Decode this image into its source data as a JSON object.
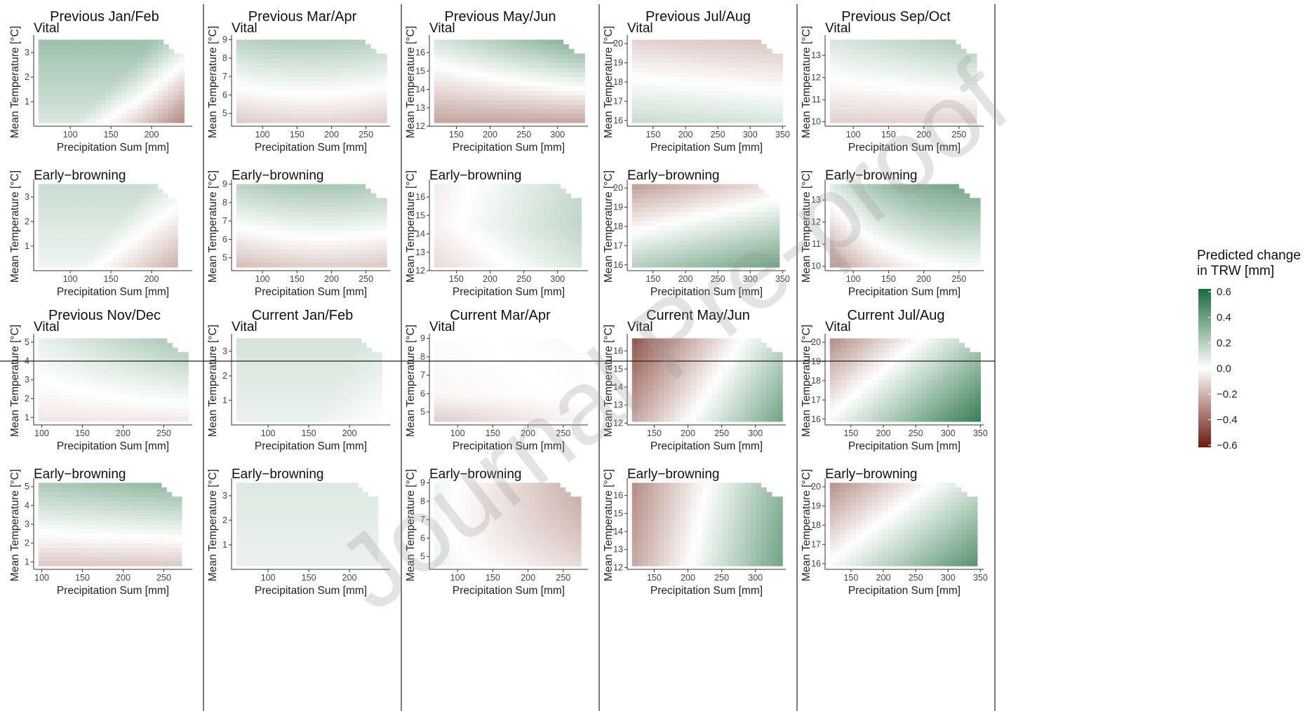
{
  "figure": {
    "x_label": "Precipitation Sum [mm]",
    "y_label": "Mean Temperature [°C]",
    "groups": [
      "Vital",
      "Early−browning"
    ],
    "legend": {
      "title_line1": "Predicted change",
      "title_line2": "in TRW [mm]",
      "ticks": [
        "0.6",
        "0.4",
        "0.2",
        "0.0",
        "−0.2",
        "−0.4",
        "−0.6"
      ],
      "colors": {
        "high": "#1a6b3a",
        "mid": "#ffffff",
        "low": "#6b1a0a"
      }
    },
    "watermark": "Journal Pre-proof"
  },
  "chart_data": {
    "type": "heatmap",
    "color_scale": {
      "min": -0.6,
      "max": 0.6,
      "low": "#6b1a0a",
      "mid": "#ffffff",
      "high": "#1a6b3a"
    },
    "panels": [
      {
        "title": "Previous Jan/Feb",
        "xlim": [
          55,
          250
        ],
        "xticks": [
          100,
          150,
          200
        ],
        "vital": {
          "ylim": [
            0,
            3.6
          ],
          "yticks": [
            1,
            2,
            3
          ],
          "xmax": 240,
          "surface": "prev_janfeb_vital"
        },
        "browning": {
          "ylim": [
            0,
            3.6
          ],
          "yticks": [
            1,
            2,
            3
          ],
          "xmax": 232,
          "surface": "prev_janfeb_brown"
        }
      },
      {
        "title": "Previous Mar/Apr",
        "xlim": [
          55,
          285
        ],
        "xticks": [
          100,
          150,
          200,
          250
        ],
        "vital": {
          "ylim": [
            4.3,
            9.1
          ],
          "yticks": [
            5,
            6,
            7,
            8,
            9
          ],
          "xmax": 280,
          "surface": "prev_marapr_vital"
        },
        "browning": {
          "ylim": [
            4.3,
            9.1
          ],
          "yticks": [
            5,
            6,
            7,
            8,
            9
          ],
          "xmax": 280,
          "surface": "prev_marapr_brown"
        }
      },
      {
        "title": "Previous May/Jun",
        "xlim": [
          110,
          345
        ],
        "xticks": [
          150,
          200,
          250,
          300
        ],
        "vital": {
          "ylim": [
            12,
            16.8
          ],
          "yticks": [
            12,
            13,
            14,
            15,
            16
          ],
          "xmax": 340,
          "surface": "prev_mayjun_vital"
        },
        "browning": {
          "ylim": [
            12,
            16.8
          ],
          "yticks": [
            12,
            13,
            14,
            15,
            16
          ],
          "xmax": 335,
          "surface": "prev_mayjun_brown"
        }
      },
      {
        "title": "Previous Jul/Aug",
        "xlim": [
          110,
          355
        ],
        "xticks": [
          150,
          200,
          250,
          300,
          350
        ],
        "vital": {
          "ylim": [
            15.7,
            20.3
          ],
          "yticks": [
            16,
            17,
            18,
            19,
            20
          ],
          "xmax": 350,
          "surface": "prev_julaug_vital"
        },
        "browning": {
          "ylim": [
            15.7,
            20.3
          ],
          "yticks": [
            16,
            17,
            18,
            19,
            20
          ],
          "xmax": 345,
          "surface": "prev_julaug_brown"
        }
      },
      {
        "title": "Previous Sep/Oct",
        "xlim": [
          60,
          285
        ],
        "xticks": [
          100,
          150,
          200,
          250
        ],
        "vital": {
          "ylim": [
            9.8,
            13.8
          ],
          "yticks": [
            10,
            11,
            12,
            13
          ],
          "xmax": 275,
          "surface": "prev_sepoct_vital"
        },
        "browning": {
          "ylim": [
            9.8,
            13.8
          ],
          "yticks": [
            10,
            11,
            12,
            13
          ],
          "xmax": 280,
          "surface": "prev_sepoct_brown"
        }
      },
      {
        "title": "Previous Nov/Dec",
        "xlim": [
          90,
          285
        ],
        "xticks": [
          100,
          150,
          200,
          250
        ],
        "vital": {
          "ylim": [
            0.6,
            5.3
          ],
          "yticks": [
            1,
            2,
            3,
            4,
            5
          ],
          "xmax": 280,
          "surface": "prev_novdec_vital"
        },
        "browning": {
          "ylim": [
            0.6,
            5.3
          ],
          "yticks": [
            1,
            2,
            3,
            4,
            5
          ],
          "xmax": 272,
          "surface": "prev_novdec_brown"
        }
      },
      {
        "title": "Current Jan/Feb",
        "xlim": [
          55,
          250
        ],
        "xticks": [
          100,
          150,
          200
        ],
        "vital": {
          "ylim": [
            0,
            3.6
          ],
          "yticks": [
            1,
            2,
            3
          ],
          "xmax": 240,
          "surface": "cur_janfeb_vital"
        },
        "browning": {
          "ylim": [
            0,
            3.6
          ],
          "yticks": [
            1,
            2,
            3
          ],
          "xmax": 235,
          "surface": "cur_janfeb_brown"
        }
      },
      {
        "title": "Current Mar/Apr",
        "xlim": [
          60,
          285
        ],
        "xticks": [
          100,
          150,
          200,
          250
        ],
        "vital": {
          "ylim": [
            4.3,
            9.1
          ],
          "yticks": [
            5,
            6,
            7,
            8,
            9
          ],
          "xmax": 280,
          "surface": "cur_marapr_vital"
        },
        "browning": {
          "ylim": [
            4.3,
            9.1
          ],
          "yticks": [
            5,
            6,
            7,
            8,
            9
          ],
          "xmax": 275,
          "surface": "cur_marapr_brown"
        }
      },
      {
        "title": "Current May/Jun",
        "xlim": [
          110,
          345
        ],
        "xticks": [
          150,
          200,
          250,
          300
        ],
        "vital": {
          "ylim": [
            11.9,
            16.8
          ],
          "yticks": [
            12,
            13,
            14,
            15,
            16
          ],
          "xmax": 340,
          "surface": "cur_mayjun_vital"
        },
        "browning": {
          "ylim": [
            11.9,
            16.8
          ],
          "yticks": [
            12,
            13,
            14,
            15,
            16
          ],
          "xmax": 340,
          "surface": "cur_mayjun_brown"
        }
      },
      {
        "title": "Current Jul/Aug",
        "xlim": [
          110,
          355
        ],
        "xticks": [
          150,
          200,
          250,
          300,
          350
        ],
        "vital": {
          "ylim": [
            15.7,
            20.3
          ],
          "yticks": [
            16,
            17,
            18,
            19,
            20
          ],
          "xmax": 350,
          "surface": "cur_julaug_vital"
        },
        "browning": {
          "ylim": [
            15.7,
            20.3
          ],
          "yticks": [
            16,
            17,
            18,
            19,
            20
          ],
          "xmax": 345,
          "surface": "cur_julaug_brown"
        }
      }
    ]
  }
}
